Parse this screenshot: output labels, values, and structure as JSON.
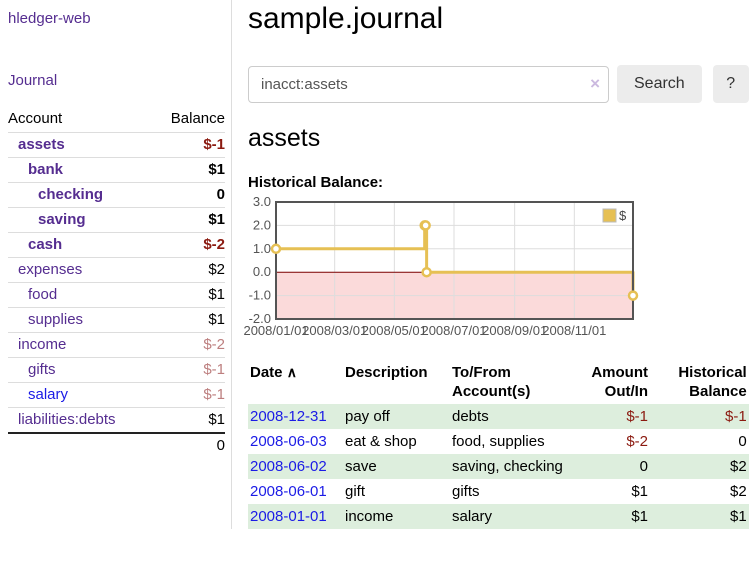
{
  "app": {
    "brand": "hledger-web",
    "nav": {
      "journal": "Journal"
    }
  },
  "sidebar": {
    "columns": {
      "account": "Account",
      "balance": "Balance"
    },
    "accounts": [
      {
        "name": "assets",
        "balance": "$-1"
      },
      {
        "name": "bank",
        "balance": "$1"
      },
      {
        "name": "checking",
        "balance": "0"
      },
      {
        "name": "saving",
        "balance": "$1"
      },
      {
        "name": "cash",
        "balance": "$-2"
      },
      {
        "name": "expenses",
        "balance": "$2"
      },
      {
        "name": "food",
        "balance": "$1"
      },
      {
        "name": "supplies",
        "balance": "$1"
      },
      {
        "name": "income",
        "balance": "$-2"
      },
      {
        "name": "gifts",
        "balance": "$-1"
      },
      {
        "name": "salary",
        "balance": "$-1"
      },
      {
        "name": "liabilities:debts",
        "balance": "$1"
      }
    ],
    "total": "0"
  },
  "main": {
    "title": "sample.journal",
    "search": {
      "value": "inacct:assets",
      "clear_icon": "×",
      "search_button": "Search",
      "help_button": "?"
    },
    "account_heading": "assets",
    "chart_title": "Historical Balance:"
  },
  "chart_data": {
    "type": "line",
    "step": true,
    "title": "Historical Balance",
    "series": [
      {
        "name": "$",
        "points": [
          {
            "date": "2008-01-01",
            "day": 0,
            "value": 1
          },
          {
            "date": "2008-06-01",
            "day": 152,
            "value": 2
          },
          {
            "date": "2008-06-02",
            "day": 153,
            "value": 2
          },
          {
            "date": "2008-06-03",
            "day": 154,
            "value": 0
          },
          {
            "date": "2008-12-31",
            "day": 365,
            "value": -1
          }
        ]
      }
    ],
    "x_ticks": [
      {
        "label": "2008/01/01",
        "day": 0
      },
      {
        "label": "2008/03/01",
        "day": 60
      },
      {
        "label": "2008/05/01",
        "day": 121
      },
      {
        "label": "2008/07/01",
        "day": 182
      },
      {
        "label": "2008/09/01",
        "day": 244
      },
      {
        "label": "2008/11/01",
        "day": 305
      }
    ],
    "y_ticks": [
      3.0,
      2.0,
      1.0,
      0.0,
      -1.0,
      -2.0
    ],
    "x_range_days": [
      0,
      365
    ],
    "ylim": [
      -2,
      3
    ],
    "legend_position": "top-right",
    "grid": true,
    "colors": {
      "line": "#e6c054",
      "marker_fill": "#ffffff",
      "negative_fill": "#fbdada",
      "zero_line": "#7a0000",
      "border": "#545454",
      "grid": "#dddddd",
      "tick_text": "#545454"
    }
  },
  "register": {
    "headers": {
      "date": "Date",
      "sort_icon": "∧",
      "description": "Description",
      "account": "To/From Account(s)",
      "amount": "Amount Out/In",
      "balance": "Historical Balance"
    },
    "rows": [
      {
        "date": "2008-12-31",
        "description": "pay off",
        "account": "debts",
        "amount": "$-1",
        "balance": "$-1"
      },
      {
        "date": "2008-06-03",
        "description": "eat & shop",
        "account": "food, supplies",
        "amount": "$-2",
        "balance": "0"
      },
      {
        "date": "2008-06-02",
        "description": "save",
        "account": "saving, checking",
        "amount": "0",
        "balance": "$2"
      },
      {
        "date": "2008-06-01",
        "description": "gift",
        "account": "gifts",
        "amount": "$1",
        "balance": "$2"
      },
      {
        "date": "2008-01-01",
        "description": "income",
        "account": "salary",
        "amount": "$1",
        "balance": "$1"
      }
    ]
  }
}
